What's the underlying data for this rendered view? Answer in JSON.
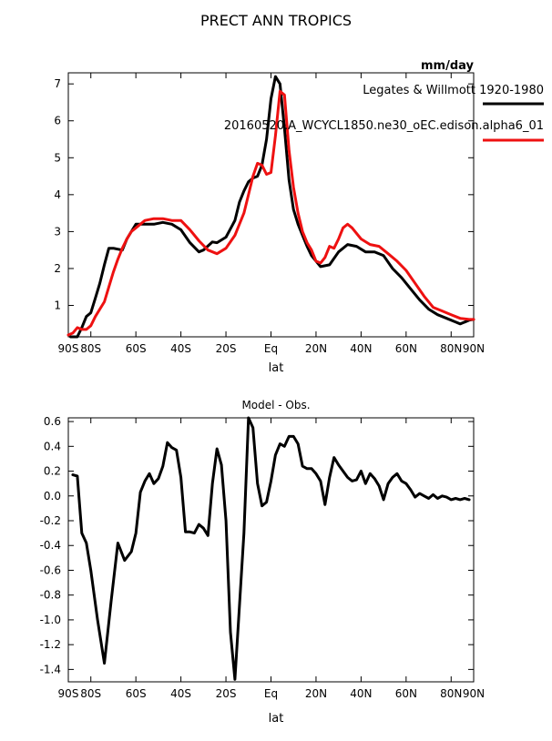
{
  "figure": {
    "title": "PRECT ANN TROPICS"
  },
  "chart_data": [
    {
      "type": "line",
      "units": "mm/day",
      "xlabel": "lat",
      "xlim": [
        -90,
        90
      ],
      "ylim": [
        0.15,
        7.3
      ],
      "x_ticks": [
        -90,
        -80,
        -60,
        -40,
        -20,
        0,
        20,
        40,
        60,
        80,
        90
      ],
      "x_tick_labels": [
        "90S",
        "80S",
        "60S",
        "40S",
        "20S",
        "Eq",
        "20N",
        "40N",
        "60N",
        "80N",
        "90N"
      ],
      "y_ticks": [
        1,
        2,
        3,
        4,
        5,
        6,
        7
      ],
      "y_tick_labels": [
        "1",
        "2",
        "3",
        "4",
        "5",
        "6",
        "7"
      ],
      "legend_placement": "top-right",
      "series": [
        {
          "name": "Legates & Willmott 1920-1980",
          "color": "#000000",
          "x": [
            -89,
            -86,
            -84,
            -82,
            -80,
            -78,
            -76,
            -74,
            -72,
            -70,
            -66,
            -64,
            -62,
            -60,
            -56,
            -52,
            -48,
            -44,
            -40,
            -36,
            -32,
            -30,
            -26,
            -24,
            -20,
            -16,
            -14,
            -12,
            -10,
            -8,
            -6,
            -4,
            -2,
            0,
            2,
            4,
            6,
            8,
            10,
            12,
            14,
            16,
            18,
            22,
            26,
            30,
            34,
            38,
            42,
            46,
            50,
            54,
            58,
            62,
            66,
            70,
            74,
            78,
            82,
            84,
            86,
            88,
            90
          ],
          "y": [
            0.05,
            0.15,
            0.4,
            0.7,
            0.8,
            1.2,
            1.6,
            2.1,
            2.55,
            2.55,
            2.5,
            2.8,
            3.0,
            3.2,
            3.2,
            3.2,
            3.25,
            3.2,
            3.05,
            2.7,
            2.45,
            2.5,
            2.72,
            2.7,
            2.85,
            3.3,
            3.8,
            4.1,
            4.35,
            4.45,
            4.5,
            4.8,
            5.5,
            6.6,
            7.2,
            7.0,
            5.8,
            4.4,
            3.6,
            3.2,
            2.9,
            2.6,
            2.35,
            2.05,
            2.1,
            2.45,
            2.65,
            2.6,
            2.45,
            2.45,
            2.35,
            2.0,
            1.75,
            1.45,
            1.15,
            0.9,
            0.75,
            0.65,
            0.55,
            0.5,
            0.55,
            0.6,
            0.62
          ]
        },
        {
          "name": "20160520.A_WCYCL1850.ne30_oEC.edison.alpha6_01",
          "color": "#ee1111",
          "x": [
            -90,
            -88,
            -86,
            -84,
            -82,
            -80,
            -78,
            -76,
            -74,
            -72,
            -70,
            -68,
            -66,
            -64,
            -62,
            -60,
            -56,
            -52,
            -48,
            -44,
            -40,
            -36,
            -32,
            -28,
            -24,
            -20,
            -16,
            -12,
            -10,
            -8,
            -6,
            -4,
            -2,
            0,
            2,
            4,
            6,
            8,
            10,
            12,
            14,
            16,
            18,
            20,
            22,
            24,
            26,
            28,
            30,
            32,
            34,
            36,
            40,
            44,
            48,
            52,
            56,
            60,
            64,
            68,
            72,
            76,
            80,
            84,
            88,
            90
          ],
          "y": [
            0.2,
            0.25,
            0.4,
            0.35,
            0.35,
            0.45,
            0.7,
            0.9,
            1.1,
            1.5,
            1.9,
            2.25,
            2.55,
            2.8,
            3.0,
            3.1,
            3.3,
            3.35,
            3.35,
            3.3,
            3.3,
            3.05,
            2.75,
            2.5,
            2.4,
            2.55,
            2.9,
            3.5,
            4.0,
            4.5,
            4.85,
            4.8,
            4.55,
            4.6,
            5.6,
            6.8,
            6.7,
            5.2,
            4.2,
            3.5,
            3.0,
            2.7,
            2.5,
            2.2,
            2.15,
            2.3,
            2.6,
            2.55,
            2.8,
            3.1,
            3.2,
            3.1,
            2.8,
            2.65,
            2.6,
            2.4,
            2.2,
            1.95,
            1.6,
            1.25,
            0.95,
            0.85,
            0.75,
            0.65,
            0.62,
            0.62
          ]
        }
      ]
    },
    {
      "type": "line",
      "title": "Model - Obs.",
      "xlabel": "lat",
      "xlim": [
        -90,
        90
      ],
      "ylim": [
        -1.5,
        0.63
      ],
      "x_ticks": [
        -90,
        -80,
        -60,
        -40,
        -20,
        0,
        20,
        40,
        60,
        80,
        90
      ],
      "x_tick_labels": [
        "90S",
        "80S",
        "60S",
        "40S",
        "20S",
        "Eq",
        "20N",
        "40N",
        "60N",
        "80N",
        "90N"
      ],
      "y_ticks": [
        -1.4,
        -1.2,
        -1.0,
        -0.8,
        -0.6,
        -0.4,
        -0.2,
        0.0,
        0.2,
        0.4,
        0.6
      ],
      "y_tick_labels": [
        "-1.4",
        "-1.2",
        "-1.0",
        "-0.8",
        "-0.6",
        "-0.4",
        "-0.2",
        "0.0",
        "0.2",
        "0.4",
        "0.6"
      ],
      "series": [
        {
          "color": "#000000",
          "x": [
            -88,
            -86,
            -84,
            -82,
            -80,
            -77,
            -74,
            -71,
            -68,
            -65,
            -62,
            -60,
            -58,
            -56,
            -54,
            -52,
            -50,
            -48,
            -46,
            -44,
            -42,
            -40,
            -38,
            -36,
            -34,
            -32,
            -30,
            -28,
            -26,
            -24,
            -22,
            -20,
            -18,
            -16,
            -12,
            -10,
            -8,
            -6,
            -4,
            -2,
            0,
            2,
            4,
            6,
            8,
            10,
            12,
            14,
            16,
            18,
            20,
            22,
            24,
            26,
            28,
            30,
            32,
            34,
            36,
            38,
            40,
            42,
            44,
            46,
            48,
            50,
            52,
            54,
            56,
            58,
            60,
            62,
            64,
            66,
            68,
            70,
            72,
            74,
            76,
            78,
            80,
            82,
            84,
            86,
            88
          ],
          "y": [
            0.17,
            0.16,
            -0.3,
            -0.38,
            -0.6,
            -1.0,
            -1.35,
            -0.85,
            -0.38,
            -0.52,
            -0.45,
            -0.3,
            0.03,
            0.12,
            0.18,
            0.1,
            0.14,
            0.24,
            0.43,
            0.39,
            0.37,
            0.15,
            -0.29,
            -0.29,
            -0.3,
            -0.23,
            -0.26,
            -0.32,
            0.1,
            0.38,
            0.25,
            -0.2,
            -1.1,
            -1.48,
            -0.3,
            0.63,
            0.55,
            0.1,
            -0.08,
            -0.05,
            0.12,
            0.33,
            0.42,
            0.4,
            0.48,
            0.48,
            0.42,
            0.24,
            0.22,
            0.22,
            0.18,
            0.12,
            -0.07,
            0.15,
            0.31,
            0.25,
            0.2,
            0.15,
            0.12,
            0.13,
            0.2,
            0.1,
            0.18,
            0.14,
            0.08,
            -0.03,
            0.1,
            0.15,
            0.18,
            0.12,
            0.1,
            0.05,
            -0.01,
            0.02,
            0.0,
            -0.02,
            0.01,
            -0.02,
            0.0,
            -0.01,
            -0.03,
            -0.02,
            -0.03,
            -0.02,
            -0.03
          ]
        }
      ]
    }
  ]
}
